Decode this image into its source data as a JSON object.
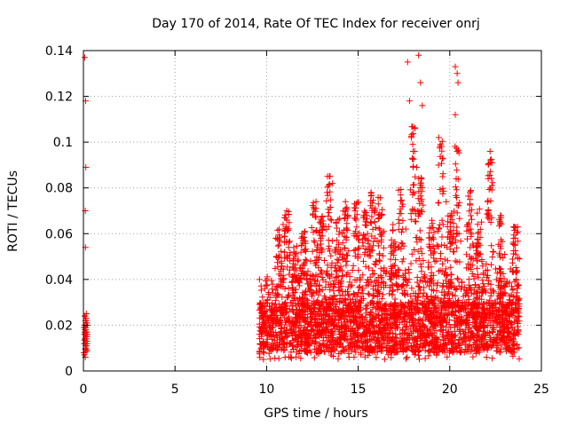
{
  "chart_data": {
    "type": "scatter",
    "title": "Day 170 of 2014, Rate Of TEC Index for receiver onrj",
    "xlabel": "GPS time / hours",
    "ylabel": "ROTI / TECUs",
    "xlim": [
      0,
      25
    ],
    "ylim": [
      0,
      0.14
    ],
    "xticks": [
      0,
      5,
      10,
      15,
      20,
      25
    ],
    "xtick_labels": [
      "0",
      "5",
      "10",
      "15",
      "20",
      "25"
    ],
    "yticks": [
      0,
      0.02,
      0.04,
      0.06,
      0.08,
      0.1,
      0.12,
      0.14
    ],
    "ytick_labels": [
      "0",
      "0.02",
      "0.04",
      "0.06",
      "0.08",
      "0.1",
      "0.12",
      "0.14"
    ],
    "grid": true,
    "marker": "plus",
    "color": "#ff0000",
    "series": [
      {
        "name": "ROTI",
        "points": [
          [
            0.02,
            0.008
          ],
          [
            0.04,
            0.012
          ],
          [
            0.05,
            0.016
          ],
          [
            0.06,
            0.02
          ],
          [
            0.07,
            0.024
          ],
          [
            0.08,
            0.014
          ],
          [
            0.09,
            0.018
          ],
          [
            0.1,
            0.006
          ],
          [
            0.11,
            0.022
          ],
          [
            0.12,
            0.01
          ],
          [
            0.13,
            0.019
          ],
          [
            0.14,
            0.015
          ],
          [
            0.15,
            0.023
          ],
          [
            0.16,
            0.011
          ],
          [
            0.17,
            0.017
          ],
          [
            0.18,
            0.013
          ],
          [
            0.19,
            0.021
          ],
          [
            0.2,
            0.009
          ],
          [
            0.21,
            0.016
          ],
          [
            0.22,
            0.02
          ],
          [
            0.06,
            0.0135
          ],
          [
            0.08,
            0.019
          ],
          [
            0.1,
            0.012
          ],
          [
            0.12,
            0.018
          ],
          [
            0.14,
            0.022
          ],
          [
            0.16,
            0.025
          ],
          [
            0.18,
            0.017
          ],
          [
            0.2,
            0.013
          ],
          [
            0.03,
            0.019
          ],
          [
            0.05,
            0.007
          ],
          [
            0.07,
            0.017
          ],
          [
            0.09,
            0.024
          ],
          [
            0.11,
            0.016
          ],
          [
            0.13,
            0.011
          ],
          [
            0.15,
            0.014
          ],
          [
            0.17,
            0.02
          ],
          [
            0.19,
            0.015
          ],
          [
            0.21,
            0.012
          ],
          [
            0.1,
            0.0095
          ],
          [
            0.14,
            0.0085
          ],
          [
            0.07,
            0.137
          ],
          [
            0.12,
            0.118
          ],
          [
            0.13,
            0.089
          ],
          [
            0.1,
            0.07
          ],
          [
            0.11,
            0.054
          ],
          [
            10.5,
            0.058
          ],
          [
            10.9,
            0.064
          ],
          [
            11.1,
            0.07
          ],
          [
            11.5,
            0.052
          ],
          [
            11.9,
            0.058
          ],
          [
            12.1,
            0.061
          ],
          [
            12.7,
            0.074
          ],
          [
            12.9,
            0.065
          ],
          [
            13.3,
            0.078
          ],
          [
            13.6,
            0.082
          ],
          [
            13.9,
            0.066
          ],
          [
            14.3,
            0.074
          ],
          [
            14.9,
            0.073
          ],
          [
            15.3,
            0.068
          ],
          [
            15.7,
            0.078
          ],
          [
            16.1,
            0.073
          ],
          [
            16.4,
            0.061
          ],
          [
            16.9,
            0.064
          ],
          [
            17.2,
            0.079
          ],
          [
            17.6,
            0.062
          ],
          [
            18.4,
            0.082
          ],
          [
            19.4,
            0.062
          ],
          [
            19.8,
            0.074
          ],
          [
            20.1,
            0.069
          ],
          [
            20.5,
            0.06
          ],
          [
            21.1,
            0.078
          ],
          [
            21.5,
            0.069
          ],
          [
            22.1,
            0.07
          ],
          [
            22.8,
            0.067
          ],
          [
            23.0,
            0.051
          ],
          [
            23.7,
            0.063
          ],
          [
            23.8,
            0.049
          ],
          [
            17.7,
            0.135
          ],
          [
            17.8,
            0.118
          ],
          [
            18.3,
            0.138
          ],
          [
            18.4,
            0.126
          ],
          [
            18.5,
            0.116
          ],
          [
            17.9,
            0.102
          ],
          [
            18.1,
            0.106
          ],
          [
            18.0,
            0.096
          ],
          [
            18.2,
            0.089
          ],
          [
            17.95,
            0.093
          ],
          [
            19.4,
            0.102
          ],
          [
            19.6,
            0.093
          ],
          [
            20.3,
            0.133
          ],
          [
            20.4,
            0.13
          ],
          [
            20.45,
            0.126
          ],
          [
            20.3,
            0.112
          ],
          [
            20.4,
            0.096
          ],
          [
            20.35,
            0.084
          ],
          [
            22.2,
            0.096
          ],
          [
            22.3,
            0.091
          ],
          [
            22.1,
            0.084
          ],
          [
            22.3,
            0.081
          ]
        ]
      }
    ],
    "dense_band": {
      "description": "dense continuous cluster of readings",
      "x_range": [
        9.6,
        23.8
      ],
      "y_typical": [
        0.005,
        0.04
      ]
    },
    "spikes": [
      {
        "center": 10.7,
        "peak": 0.062
      },
      {
        "center": 11.1,
        "peak": 0.07
      },
      {
        "center": 11.6,
        "peak": 0.056
      },
      {
        "center": 12.0,
        "peak": 0.062
      },
      {
        "center": 12.6,
        "peak": 0.075
      },
      {
        "center": 13.0,
        "peak": 0.068
      },
      {
        "center": 13.4,
        "peak": 0.086
      },
      {
        "center": 13.9,
        "peak": 0.068
      },
      {
        "center": 14.3,
        "peak": 0.075
      },
      {
        "center": 14.9,
        "peak": 0.075
      },
      {
        "center": 15.4,
        "peak": 0.07
      },
      {
        "center": 15.8,
        "peak": 0.078
      },
      {
        "center": 16.2,
        "peak": 0.077
      },
      {
        "center": 16.9,
        "peak": 0.066
      },
      {
        "center": 17.3,
        "peak": 0.08
      },
      {
        "center": 18.0,
        "peak": 0.108
      },
      {
        "center": 18.4,
        "peak": 0.085
      },
      {
        "center": 19.0,
        "peak": 0.066
      },
      {
        "center": 19.5,
        "peak": 0.102
      },
      {
        "center": 20.0,
        "peak": 0.07
      },
      {
        "center": 20.4,
        "peak": 0.1
      },
      {
        "center": 21.1,
        "peak": 0.08
      },
      {
        "center": 21.6,
        "peak": 0.072
      },
      {
        "center": 22.2,
        "peak": 0.096
      },
      {
        "center": 22.8,
        "peak": 0.068
      },
      {
        "center": 23.6,
        "peak": 0.064
      }
    ],
    "seed": 170
  }
}
